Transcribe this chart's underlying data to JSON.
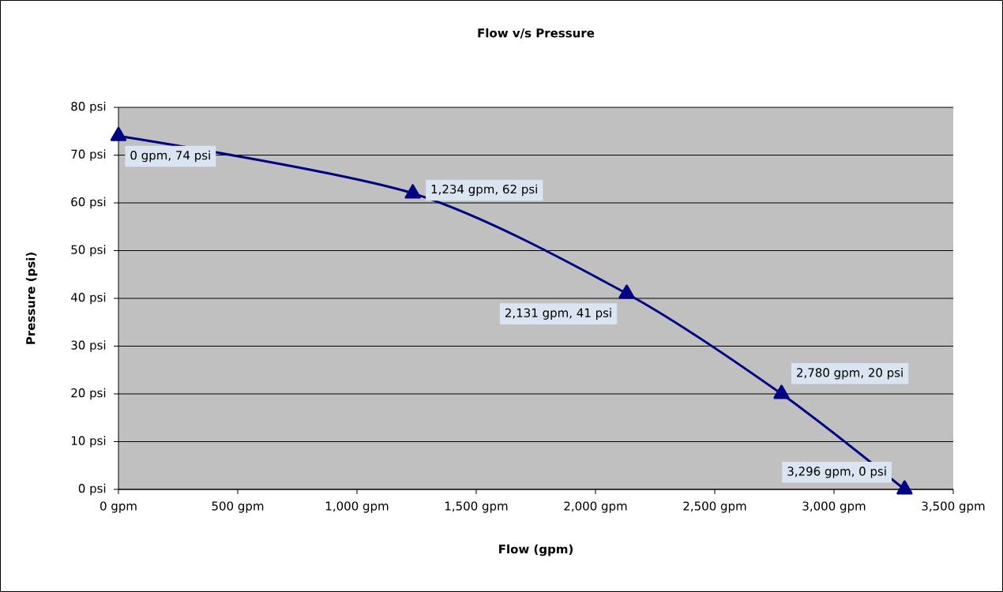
{
  "chart_data": {
    "type": "line",
    "title": "Flow v/s Pressure",
    "xlabel": "Flow (gpm)",
    "ylabel": "Pressure (psi)",
    "x": [
      0,
      1234,
      2131,
      2780,
      3296
    ],
    "series": [
      {
        "color": "#000080",
        "values": [
          74,
          62,
          41,
          20,
          0
        ],
        "value_labels": [
          "0 gpm, 74 psi",
          "1,234 gpm, 62 psi",
          "2,131 gpm, 41 psi",
          "2,780 gpm, 20 psi",
          "3,296 gpm, 0 psi"
        ]
      }
    ],
    "xlim": [
      0,
      3500
    ],
    "xticks": [
      {
        "value": 0,
        "label": "0 gpm"
      },
      {
        "value": 500,
        "label": "500 gpm"
      },
      {
        "value": 1000,
        "label": "1,000 gpm"
      },
      {
        "value": 1500,
        "label": "1,500 gpm"
      },
      {
        "value": 2000,
        "label": "2,000 gpm"
      },
      {
        "value": 2500,
        "label": "2,500 gpm"
      },
      {
        "value": 3000,
        "label": "3,000 gpm"
      },
      {
        "value": 3500,
        "label": "3,500 gpm"
      }
    ],
    "ylim": [
      0,
      80
    ],
    "yticks": [
      {
        "value": 0,
        "label": "0 psi"
      },
      {
        "value": 10,
        "label": "10 psi"
      },
      {
        "value": 20,
        "label": "20 psi"
      },
      {
        "value": 30,
        "label": "30 psi"
      },
      {
        "value": 40,
        "label": "40 psi"
      },
      {
        "value": 50,
        "label": "50 psi"
      },
      {
        "value": 60,
        "label": "60 psi"
      },
      {
        "value": 70,
        "label": "70 psi"
      },
      {
        "value": 80,
        "label": "80 psi"
      }
    ],
    "grid": "y",
    "marker": "triangle",
    "line_style": "solid"
  }
}
